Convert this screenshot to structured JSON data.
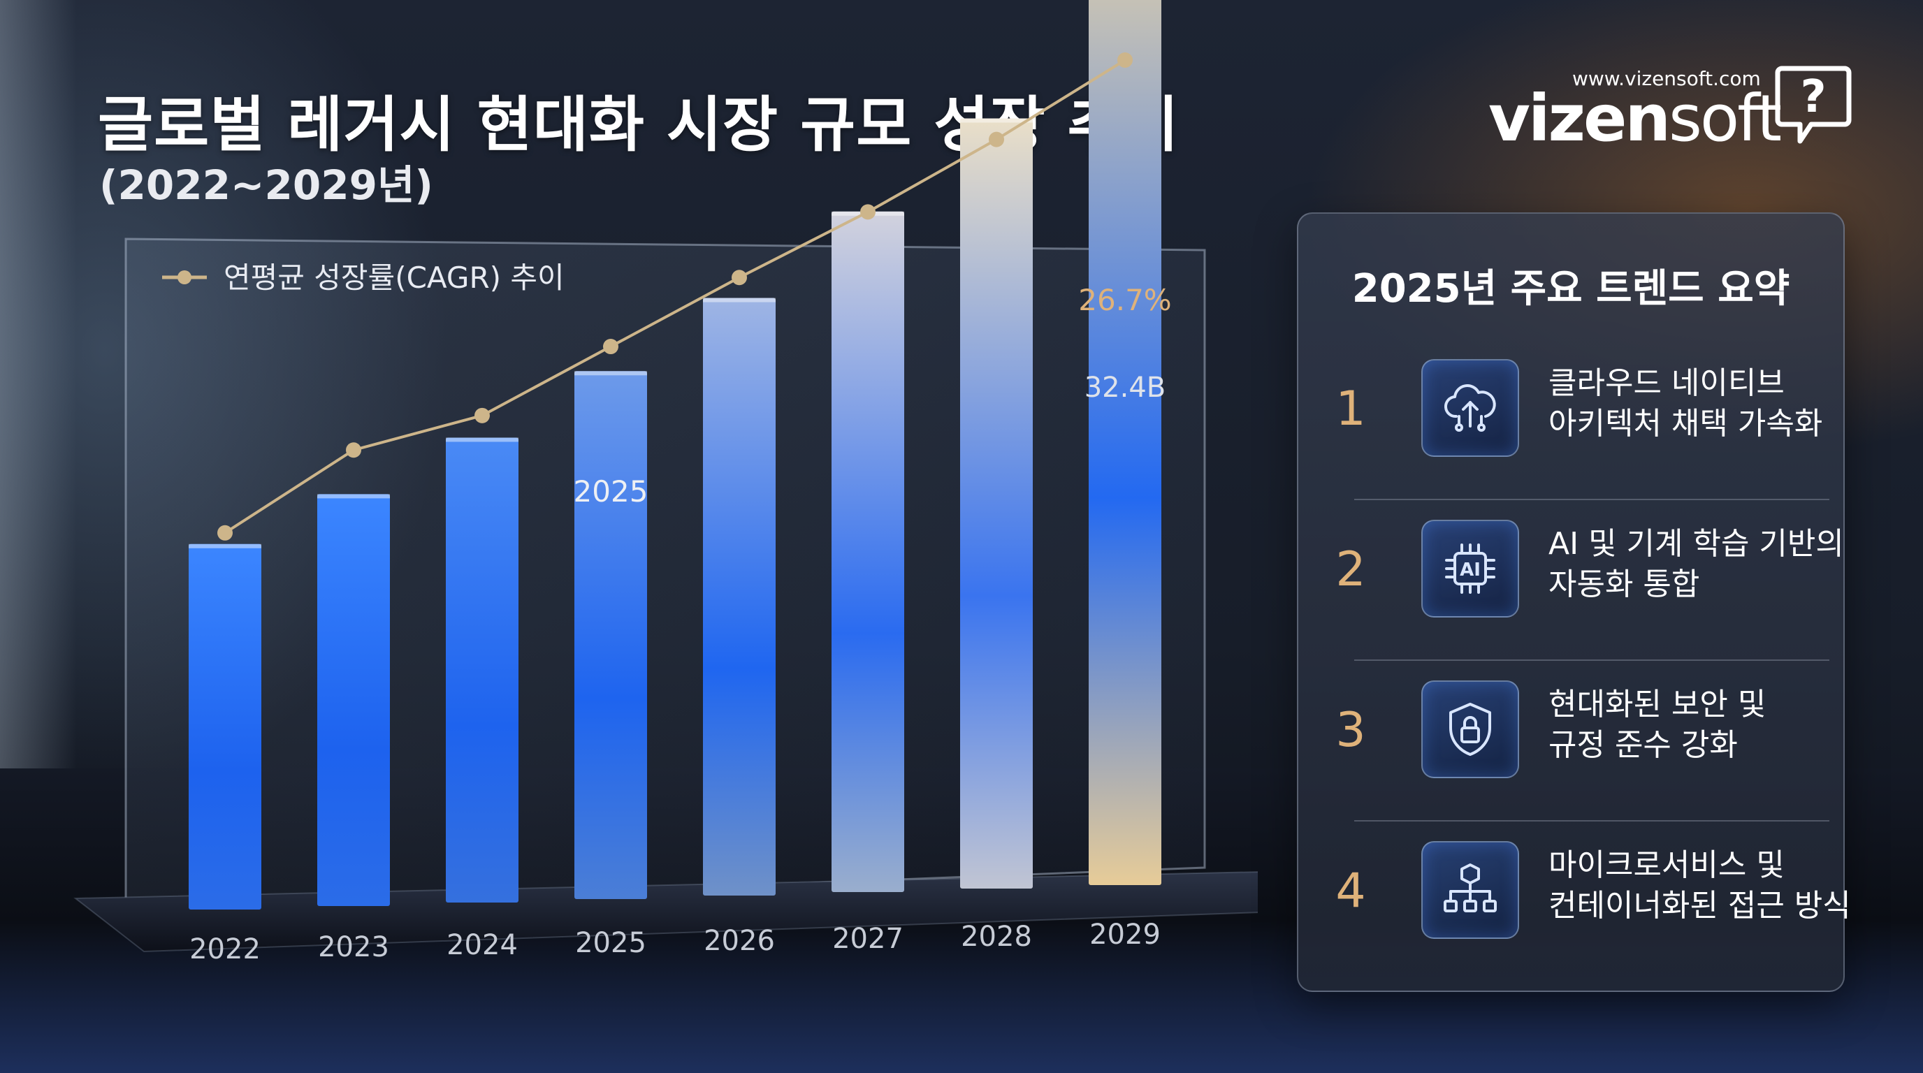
{
  "header": {
    "title": "글로벌 레거시 현대화 시장 규모 성장 추이",
    "subtitle": "(2022~2029년)"
  },
  "brand": {
    "url": "www.vizensoft.com",
    "logo_bold": "vizen",
    "logo_light": "soft",
    "icon": "speech-bubble-question-icon",
    "icon_glyph": "?"
  },
  "chart_data": {
    "type": "bar",
    "categories": [
      "2022",
      "2023",
      "2024",
      "2025",
      "2026",
      "2027",
      "2028",
      "2029"
    ],
    "series": [
      {
        "type": "bar",
        "values": [
          12.0,
          13.5,
          15.2,
          17.2,
          19.4,
          22.0,
          24.8,
          32.4
        ]
      },
      {
        "name": "연평균 성장률(CAGR) 추이",
        "type": "line",
        "values": [
          13.0,
          15.4,
          16.4,
          18.4,
          20.4,
          22.3,
          24.4,
          26.7
        ]
      }
    ],
    "legend": [
      "연평균 성장률(CAGR) 추이"
    ],
    "annotations": [
      {
        "category": "2029",
        "series": "bar",
        "text": "32.4B"
      },
      {
        "category": "2029",
        "series": "line",
        "text": "26.7%"
      },
      {
        "category": "2025",
        "series": "line",
        "text": "2025"
      }
    ],
    "legend_position": "top-left",
    "grid": false
  },
  "panel": {
    "title": "2025년 주요 트렌드 요약",
    "items": [
      {
        "num": "1",
        "icon": "cloud-upload-icon",
        "line1": "클라우드 네이티브",
        "line2": "아키텍처 채택 가속화"
      },
      {
        "num": "2",
        "icon": "ai-chip-icon",
        "icon_label": "AI",
        "line1": "AI 및 기계 학습 기반의",
        "line2": "자동화 통합"
      },
      {
        "num": "3",
        "icon": "security-shield-lock-icon",
        "line1": "현대화된 보안 및",
        "line2": "규정 준수 강화"
      },
      {
        "num": "4",
        "icon": "microservices-network-icon",
        "line1": "마이크로서비스 및",
        "line2": "컨테이너화된 접근 방식"
      }
    ]
  },
  "colors": {
    "accent_gold": "#dfb27a",
    "bar_blue": "#1e6cf0",
    "line_gold": "#cdb58a",
    "panel_bg": "#2e3545"
  }
}
